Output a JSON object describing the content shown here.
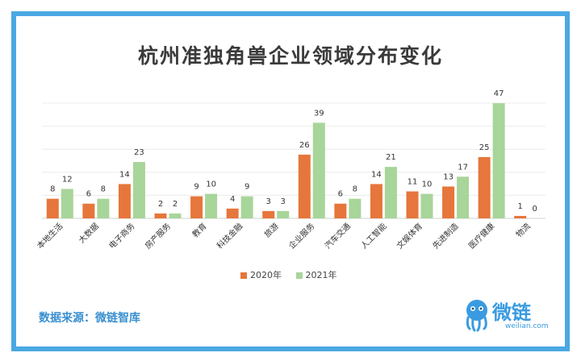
{
  "chart_data": {
    "type": "bar",
    "title": "杭州准独角兽企业领域分布变化",
    "categories": [
      "本地生活",
      "大数据",
      "电子商务",
      "房产服务",
      "教育",
      "科技金融",
      "旅游",
      "企业服务",
      "汽车交通",
      "人工智能",
      "文娱体育",
      "先进制造",
      "医疗健康",
      "物流"
    ],
    "series": [
      {
        "name": "2020年",
        "color": "#e6763b",
        "values": [
          8,
          6,
          14,
          2,
          9,
          4,
          3,
          26,
          6,
          14,
          11,
          13,
          25,
          1
        ]
      },
      {
        "name": "2021年",
        "color": "#a8d59a",
        "values": [
          12,
          8,
          23,
          2,
          10,
          9,
          3,
          39,
          8,
          21,
          10,
          17,
          47,
          0
        ]
      }
    ],
    "xlabel": "",
    "ylabel": "",
    "ylim": [
      0,
      47
    ],
    "grid": true,
    "legend_position": "bottom-center"
  },
  "footer": {
    "source": "数据来源：微链智库",
    "logo_text": "微链",
    "logo_url_text": "weilian.com"
  },
  "colors": {
    "frame": "#4aa8e3",
    "accent": "#3a9be0"
  }
}
